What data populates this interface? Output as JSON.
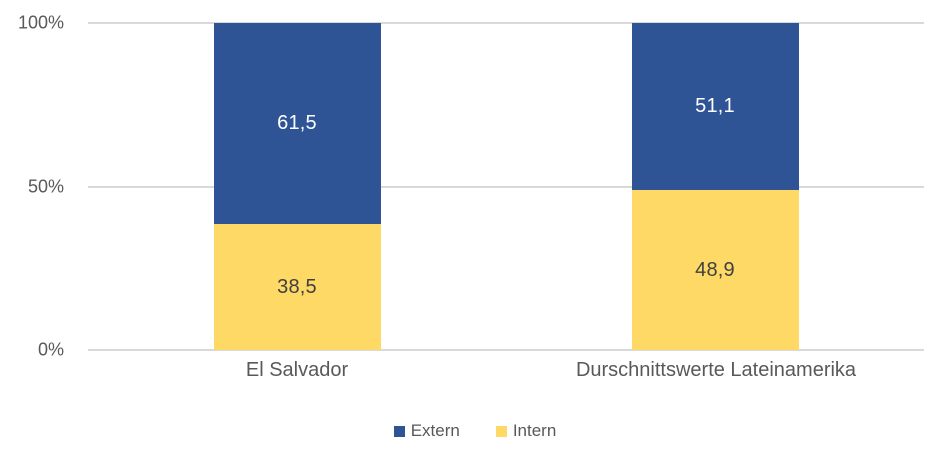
{
  "chart_data": {
    "type": "bar",
    "subtype": "stacked-100-percent",
    "title": "",
    "categories": [
      "El Salvador",
      "Durschnittswerte Lateinamerika"
    ],
    "series": [
      {
        "name": "Extern",
        "color": "#2F5496",
        "values": [
          61.5,
          51.1
        ],
        "labels": [
          "61,5",
          "51,1"
        ],
        "label_color": "#FFFFFF",
        "stack_order": "top"
      },
      {
        "name": "Intern",
        "color": "#FFD965",
        "values": [
          38.5,
          48.9
        ],
        "labels": [
          "38,5",
          "48,9"
        ],
        "label_color": "#404040",
        "stack_order": "bottom"
      }
    ],
    "y_axis": {
      "min": 0,
      "max": 100,
      "ticks": [
        "100%",
        "50%",
        "0%"
      ]
    },
    "xlabel": "",
    "ylabel": "",
    "grid": true,
    "gridline_color": "#D9D9D9",
    "axis_text_color": "#595959",
    "legend": {
      "position": "bottom",
      "entries": [
        "Extern",
        "Intern"
      ]
    },
    "background_color": "#FFFFFF"
  }
}
